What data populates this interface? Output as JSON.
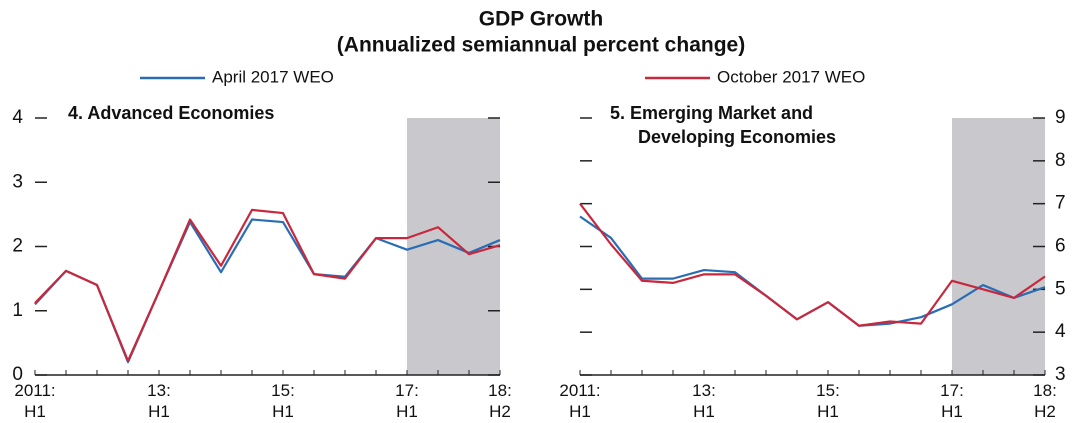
{
  "title": "GDP Growth",
  "subtitle": "(Annualized semiannual percent change)",
  "chart_data": [
    {
      "type": "line",
      "title_lines": [
        "4. Advanced Economies"
      ],
      "axis_side": "left",
      "categories": [
        "2011:\nH1",
        null,
        null,
        null,
        "13:\nH1",
        null,
        null,
        null,
        "15:\nH1",
        null,
        null,
        null,
        "17:\nH1",
        null,
        null,
        "18:\nH2"
      ],
      "shade_from": 12,
      "ylim": [
        0,
        4
      ],
      "yticks": [
        0,
        1,
        2,
        3,
        4
      ],
      "series": [
        {
          "name": "April 2017 WEO",
          "color": "#2a6db5",
          "values": [
            1.1,
            1.62,
            1.4,
            0.2,
            1.3,
            2.38,
            1.6,
            2.42,
            2.38,
            1.57,
            1.53,
            2.13,
            1.95,
            2.1,
            1.9,
            2.1
          ]
        },
        {
          "name": "October 2017 WEO",
          "color": "#c8283c",
          "values": [
            1.12,
            1.62,
            1.4,
            0.22,
            1.3,
            2.42,
            1.7,
            2.57,
            2.52,
            1.57,
            1.5,
            2.13,
            2.13,
            2.3,
            1.88,
            2.02
          ]
        }
      ]
    },
    {
      "type": "line",
      "title_lines": [
        "5. Emerging Market and",
        "Developing Economies"
      ],
      "axis_side": "right",
      "categories": [
        "2011:\nH1",
        null,
        null,
        null,
        "13:\nH1",
        null,
        null,
        null,
        "15:\nH1",
        null,
        null,
        null,
        "17:\nH1",
        null,
        null,
        "18:\nH2"
      ],
      "shade_from": 12,
      "ylim": [
        3,
        9
      ],
      "yticks": [
        3,
        4,
        5,
        6,
        7,
        8,
        9
      ],
      "series": [
        {
          "name": "April 2017 WEO",
          "color": "#2a6db5",
          "values": [
            6.7,
            6.2,
            5.25,
            5.25,
            5.45,
            5.4,
            4.85,
            4.3,
            4.7,
            4.15,
            4.2,
            4.35,
            4.65,
            5.1,
            4.8,
            5.05
          ]
        },
        {
          "name": "October 2017 WEO",
          "color": "#c8283c",
          "values": [
            7.0,
            6.05,
            5.2,
            5.15,
            5.35,
            5.35,
            4.85,
            4.3,
            4.7,
            4.15,
            4.25,
            4.2,
            5.2,
            5.0,
            4.8,
            5.3
          ]
        }
      ]
    }
  ]
}
